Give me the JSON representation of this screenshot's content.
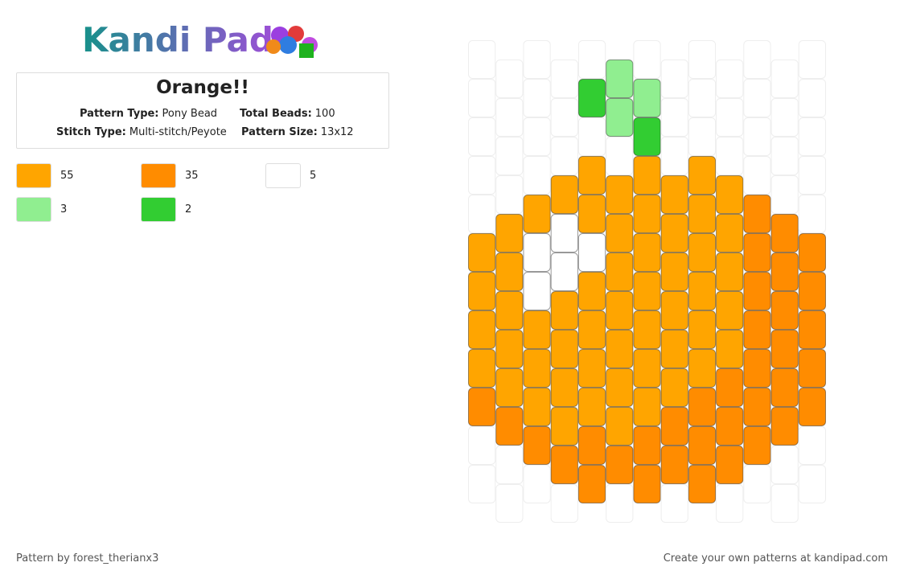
{
  "logo": "Kandi Pad",
  "title": "Orange!!",
  "info": [
    {
      "label": "Pattern Type:",
      "value": "Pony Bead"
    },
    {
      "label": "Total Beads:",
      "value": 100
    },
    {
      "label": "Stitch Type:",
      "value": "Multi-stitch/Peyote"
    },
    {
      "label": "Pattern Size:",
      "value": "13x12"
    }
  ],
  "palette": [
    {
      "color": "#ffa500",
      "count": 55
    },
    {
      "color": "#ff8c00",
      "count": 35
    },
    {
      "color": "#ffffff",
      "count": 5
    },
    {
      "color": "#90ee90",
      "count": 3
    },
    {
      "color": "#32cd32",
      "count": 2
    }
  ],
  "pattern": {
    "columns": [
      [
        null,
        null,
        null,
        null,
        null,
        "#ffa500",
        "#ffa500",
        "#ffa500",
        "#ffa500",
        "#ff8c00",
        null,
        null
      ],
      [
        null,
        null,
        null,
        null,
        "#ffa500",
        "#ffa500",
        "#ffa500",
        "#ffa500",
        "#ffa500",
        "#ff8c00",
        null,
        null
      ],
      [
        null,
        null,
        null,
        null,
        "#ffa500",
        "#ffffff",
        "#ffffff",
        "#ffa500",
        "#ffa500",
        "#ffa500",
        "#ff8c00",
        null
      ],
      [
        null,
        null,
        null,
        "#ffa500",
        "#ffffff",
        "#ffffff",
        "#ffa500",
        "#ffa500",
        "#ffa500",
        "#ffa500",
        "#ff8c00",
        null
      ],
      [
        null,
        "#32cd32",
        null,
        "#ffa500",
        "#ffa500",
        "#ffffff",
        "#ffa500",
        "#ffa500",
        "#ffa500",
        "#ffa500",
        "#ff8c00",
        "#ff8c00"
      ],
      [
        "#90ee90",
        "#90ee90",
        null,
        "#ffa500",
        "#ffa500",
        "#ffa500",
        "#ffa500",
        "#ffa500",
        "#ffa500",
        "#ffa500",
        "#ff8c00",
        null
      ],
      [
        null,
        "#90ee90",
        "#32cd32",
        "#ffa500",
        "#ffa500",
        "#ffa500",
        "#ffa500",
        "#ffa500",
        "#ffa500",
        "#ffa500",
        "#ff8c00",
        "#ff8c00"
      ],
      [
        null,
        null,
        null,
        "#ffa500",
        "#ffa500",
        "#ffa500",
        "#ffa500",
        "#ffa500",
        "#ffa500",
        "#ff8c00",
        "#ff8c00",
        null
      ],
      [
        null,
        null,
        null,
        "#ffa500",
        "#ffa500",
        "#ffa500",
        "#ffa500",
        "#ffa500",
        "#ffa500",
        "#ff8c00",
        "#ff8c00",
        "#ff8c00"
      ],
      [
        null,
        null,
        null,
        "#ffa500",
        "#ffa500",
        "#ffa500",
        "#ffa500",
        "#ffa500",
        "#ff8c00",
        "#ff8c00",
        "#ff8c00",
        null
      ],
      [
        null,
        null,
        null,
        null,
        "#ff8c00",
        "#ff8c00",
        "#ff8c00",
        "#ff8c00",
        "#ff8c00",
        "#ff8c00",
        "#ff8c00",
        null
      ],
      [
        null,
        null,
        null,
        null,
        "#ff8c00",
        "#ff8c00",
        "#ff8c00",
        "#ff8c00",
        "#ff8c00",
        "#ff8c00",
        null,
        null
      ],
      [
        null,
        null,
        null,
        null,
        null,
        "#ff8c00",
        "#ff8c00",
        "#ff8c00",
        "#ff8c00",
        "#ff8c00",
        null,
        null
      ]
    ]
  },
  "footer": {
    "credit": "Pattern by forest_therianx3",
    "promo": "Create your own patterns at kandipad.com"
  }
}
